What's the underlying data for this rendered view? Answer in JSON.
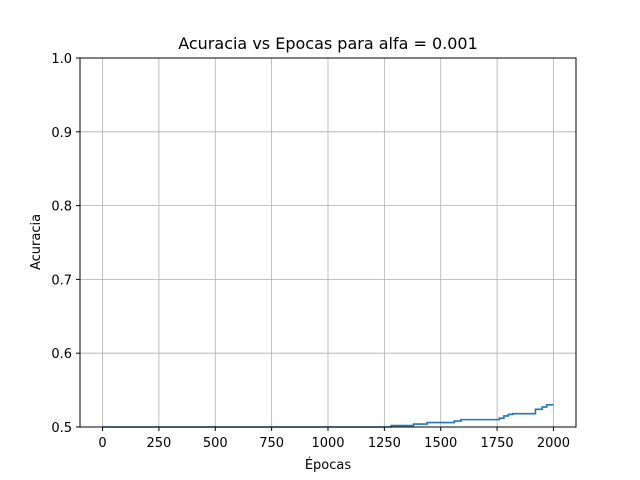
{
  "chart_data": {
    "type": "line",
    "title": "Acuracia vs Epocas para alfa = 0.001",
    "xlabel": "Épocas",
    "ylabel": "Acuracia",
    "xlim": [
      -100,
      2100
    ],
    "ylim": [
      0.5,
      1.0
    ],
    "grid": true,
    "x_ticks": [
      0,
      250,
      500,
      750,
      1000,
      1250,
      1500,
      1750,
      2000
    ],
    "x_tick_labels": [
      "0",
      "250",
      "500",
      "750",
      "1000",
      "1250",
      "1500",
      "1750",
      "2000"
    ],
    "y_ticks": [
      0.5,
      0.6,
      0.7,
      0.8,
      0.9,
      1.0
    ],
    "y_tick_labels": [
      "0.5",
      "0.6",
      "0.7",
      "0.8",
      "0.9",
      "1.0"
    ],
    "series": [
      {
        "color": "#1f77b4",
        "x": [
          0,
          1280,
          1280,
          1380,
          1380,
          1440,
          1440,
          1560,
          1560,
          1590,
          1590,
          1760,
          1760,
          1780,
          1780,
          1800,
          1800,
          1820,
          1820,
          1920,
          1920,
          1950,
          1950,
          1970,
          1970,
          2000
        ],
        "y": [
          0.5,
          0.5,
          0.502,
          0.502,
          0.504,
          0.504,
          0.506,
          0.506,
          0.508,
          0.508,
          0.51,
          0.51,
          0.512,
          0.512,
          0.515,
          0.515,
          0.517,
          0.517,
          0.518,
          0.518,
          0.524,
          0.524,
          0.527,
          0.527,
          0.53,
          0.53
        ]
      }
    ]
  }
}
